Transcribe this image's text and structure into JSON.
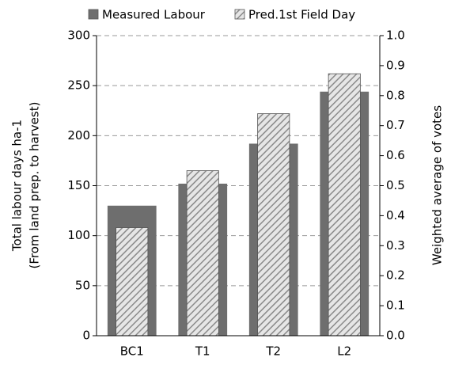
{
  "chart_data": {
    "type": "bar",
    "categories": [
      "BC1",
      "T1",
      "T2",
      "L2"
    ],
    "series": [
      {
        "name": "Measured Labour",
        "color": "#6e6e6e",
        "values": [
          130,
          152,
          192,
          244
        ]
      },
      {
        "name": "Pred.1st Field Day",
        "color": "#d9d9d9",
        "axis": "y2",
        "values": [
          0.36,
          0.55,
          0.74,
          0.873
        ]
      }
    ],
    "y_label": [
      "Total labour days ha-1",
      "(From land prep. to harvest)"
    ],
    "y2_label": "Weighted average of votes",
    "ylim": [
      0,
      300
    ],
    "yticks": [
      0,
      50,
      100,
      150,
      200,
      250,
      300
    ],
    "y2lim": [
      0,
      1
    ],
    "y2ticks": [
      {
        "value": 0,
        "label": "0.0"
      },
      0.1,
      0.2,
      0.3,
      0.4,
      0.5,
      0.6,
      0.7,
      0.8,
      0.9,
      {
        "value": 1,
        "label": "1.0"
      }
    ],
    "grid": true,
    "legend": "top"
  }
}
